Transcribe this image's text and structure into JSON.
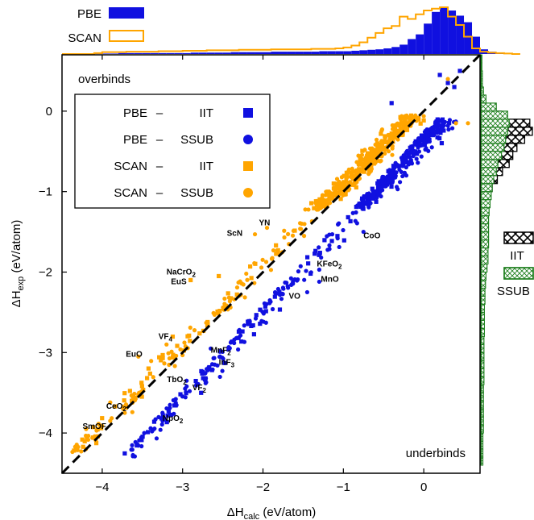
{
  "chart_data": {
    "type": "scatter",
    "xlabel": "ΔH",
    "xlabel_sub": "calc",
    "xlabel_unit": " (eV/atom)",
    "ylabel": "ΔH",
    "ylabel_sub": "exp",
    "ylabel_unit": " (eV/atom)",
    "xlim": [
      -4.5,
      0.7
    ],
    "ylim": [
      -4.5,
      0.7
    ],
    "x_ticks": [
      "−4",
      "−3",
      "−2",
      "−1",
      "0"
    ],
    "y_ticks": [
      "−4",
      "−3",
      "−2",
      "−1",
      "0"
    ],
    "region_labels": {
      "top_left": "overbinds",
      "bottom_right": "underbinds"
    },
    "legend": {
      "placement": "upper-left",
      "entries": [
        {
          "functional": "PBE",
          "dash": "–",
          "reference": "IIT",
          "marker": "square",
          "color": "#1010e0"
        },
        {
          "functional": "PBE",
          "dash": "–",
          "reference": "SSUB",
          "marker": "circle",
          "color": "#1010e0"
        },
        {
          "functional": "SCAN",
          "dash": "–",
          "reference": "IIT",
          "marker": "square",
          "color": "#ffa500"
        },
        {
          "functional": "SCAN",
          "dash": "–",
          "reference": "SSUB",
          "marker": "circle",
          "color": "#ffa500"
        }
      ]
    },
    "top_histogram": {
      "legend": [
        {
          "name": "PBE",
          "style": "filled",
          "color": "#1010e0"
        },
        {
          "name": "SCAN",
          "style": "outline",
          "color": "#ffa500"
        }
      ],
      "bins_from": -4.5,
      "bin_width": 0.1,
      "pbe": [
        0,
        0,
        0,
        0,
        0.01,
        0.01,
        0.01,
        0.02,
        0.02,
        0.02,
        0.02,
        0.02,
        0.02,
        0.02,
        0.02,
        0.02,
        0.03,
        0.03,
        0.03,
        0.03,
        0.03,
        0.04,
        0.04,
        0.04,
        0.04,
        0.04,
        0.05,
        0.05,
        0.05,
        0.05,
        0.05,
        0.05,
        0.06,
        0.06,
        0.06,
        0.06,
        0.07,
        0.08,
        0.09,
        0.1,
        0.12,
        0.15,
        0.2,
        0.32,
        0.42,
        0.65,
        0.9,
        1.0,
        0.93,
        0.82,
        0.68,
        0.37,
        0.1,
        0.05,
        0.03,
        0.02,
        0.01
      ],
      "scan": [
        0,
        0,
        0,
        0,
        0.02,
        0.04,
        0.04,
        0.04,
        0.05,
        0.05,
        0.05,
        0.05,
        0.06,
        0.06,
        0.06,
        0.07,
        0.07,
        0.07,
        0.08,
        0.08,
        0.08,
        0.08,
        0.09,
        0.09,
        0.09,
        0.09,
        0.1,
        0.1,
        0.1,
        0.1,
        0.1,
        0.11,
        0.11,
        0.11,
        0.12,
        0.14,
        0.18,
        0.25,
        0.35,
        0.45,
        0.55,
        0.6,
        0.8,
        0.75,
        0.85,
        0.93,
        0.97,
        1.0,
        0.8,
        0.62,
        0.37,
        0.12,
        0.05,
        0.03,
        0.02,
        0.01,
        0
      ]
    },
    "right_histogram": {
      "legend": [
        {
          "name": "IIT",
          "style": "crosshatch",
          "color": "#000000"
        },
        {
          "name": "SSUB",
          "style": "crosshatch",
          "color": "#208020"
        }
      ],
      "bins_from": -4.5,
      "bin_width": 0.1,
      "iit": [
        0,
        0,
        0,
        0,
        0,
        0,
        0,
        0,
        0,
        0,
        0,
        0,
        0,
        0,
        0,
        0,
        0,
        0,
        0,
        0,
        0,
        0,
        0,
        0,
        0,
        0,
        0,
        0,
        0,
        0,
        0,
        0,
        0.02,
        0.05,
        0.12,
        0.22,
        0.32,
        0.42,
        0.55,
        0.62,
        0.7,
        0.85,
        1.0,
        0.95,
        0.4,
        0.1,
        0.05,
        0.02,
        0,
        0,
        0,
        0
      ],
      "ssub": [
        0,
        0.04,
        0.04,
        0.04,
        0.04,
        0.05,
        0.05,
        0.05,
        0.05,
        0.05,
        0.05,
        0.06,
        0.06,
        0.06,
        0.06,
        0.06,
        0.06,
        0.07,
        0.07,
        0.07,
        0.07,
        0.08,
        0.08,
        0.09,
        0.1,
        0.12,
        0.14,
        0.14,
        0.15,
        0.15,
        0.15,
        0.15,
        0.16,
        0.18,
        0.2,
        0.22,
        0.25,
        0.3,
        0.33,
        0.4,
        0.45,
        0.48,
        0.52,
        0.55,
        0.52,
        0.3,
        0.1,
        0.05,
        0.03,
        0.03,
        0.02,
        0.02
      ]
    },
    "labeled_points": [
      {
        "name": "CoO",
        "sub": "",
        "x": -0.75,
        "y": -1.5,
        "marker": "circle",
        "series": "PBE – SSUB"
      },
      {
        "name": "ScN",
        "sub": "",
        "x": -2.1,
        "y": -1.53,
        "marker": "circle",
        "series": "SCAN – SSUB"
      },
      {
        "name": "YN",
        "sub": "",
        "x": -1.95,
        "y": -1.45,
        "marker": "circle",
        "series": "SCAN – SSUB"
      },
      {
        "name": "KFeO",
        "sub": "2",
        "x": -1.3,
        "y": -1.97,
        "marker": "circle",
        "series": "PBE – SSUB"
      },
      {
        "name": "NaCrO",
        "sub": "2",
        "x": -2.55,
        "y": -2.05,
        "marker": "square",
        "series": "SCAN – IIT"
      },
      {
        "name": "EuS",
        "sub": "",
        "x": -2.9,
        "y": -2.1,
        "marker": "square",
        "series": "SCAN – IIT"
      },
      {
        "name": "MnO",
        "sub": "",
        "x": -1.3,
        "y": -2.12,
        "marker": "circle",
        "series": "PBE – SSUB"
      },
      {
        "name": "VO",
        "sub": "",
        "x": -1.45,
        "y": -2.25,
        "marker": "circle",
        "series": "PBE – SSUB"
      },
      {
        "name": "VF",
        "sub": "4",
        "x": -3.2,
        "y": -2.9,
        "marker": "circle",
        "series": "SCAN – SSUB"
      },
      {
        "name": "EuO",
        "sub": "",
        "x": -3.55,
        "y": -3.05,
        "marker": "circle",
        "series": "SCAN – SSUB"
      },
      {
        "name": "MnF",
        "sub": "2",
        "x": -2.65,
        "y": -2.95,
        "marker": "circle",
        "series": "PBE – SSUB"
      },
      {
        "name": "InF",
        "sub": "3",
        "x": -2.6,
        "y": -3.15,
        "marker": "circle",
        "series": "PBE – SSUB"
      },
      {
        "name": "TbO",
        "sub": "2",
        "x": -2.95,
        "y": -3.35,
        "marker": "circle",
        "series": "PBE – SSUB"
      },
      {
        "name": "VF",
        "sub": "2",
        "x": -2.95,
        "y": -3.42,
        "marker": "circle",
        "series": "PBE – SSUB"
      },
      {
        "name": "CeO",
        "sub": "2",
        "x": -3.9,
        "y": -3.62,
        "marker": "circle",
        "series": "SCAN – SSUB"
      },
      {
        "name": "NpO",
        "sub": "2",
        "x": -3.25,
        "y": -3.75,
        "marker": "circle",
        "series": "PBE – SSUB"
      },
      {
        "name": "SmOF",
        "sub": "",
        "x": -4.2,
        "y": -3.95,
        "marker": "circle",
        "series": "SCAN – SSUB"
      }
    ],
    "point_cloud_note": ""
  }
}
